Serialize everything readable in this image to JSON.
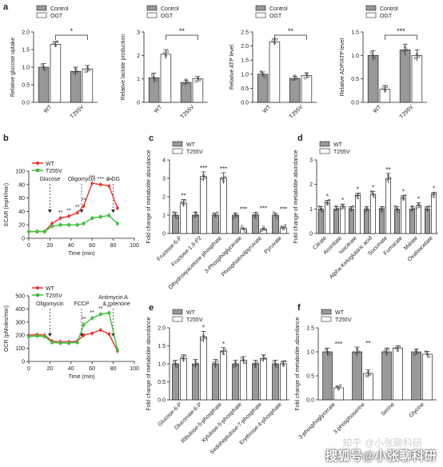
{
  "panel_labels": [
    "a",
    "b",
    "c",
    "d",
    "e",
    "f"
  ],
  "watermark": {
    "top": "知乎 @小张聊科研",
    "bottom": "搜狐号@小张聊科研"
  },
  "colors": {
    "control": "#999999",
    "ogt": "#ffffff",
    "wt_bar": "#999999",
    "t255v_bar": "#ffffff",
    "wt_line": "#e8312a",
    "t255v_line": "#3fbf3a",
    "axis": "#222222",
    "dots": "#555555"
  },
  "chart_data": [
    {
      "id": "a1",
      "type": "bar",
      "legend": [
        "Control",
        "OGT"
      ],
      "ylabel": "Relative glucose uptake",
      "categories": [
        "WT",
        "T255V"
      ],
      "ylim": [
        0,
        2.0
      ],
      "yticks": [
        0.0,
        0.5,
        1.0,
        1.5,
        2.0
      ],
      "series": [
        {
          "name": "Control",
          "values": [
            1.0,
            0.88
          ],
          "err": [
            0.1,
            0.12
          ]
        },
        {
          "name": "OGT",
          "values": [
            1.65,
            0.95
          ],
          "err": [
            0.08,
            0.1
          ]
        }
      ],
      "sig": "*"
    },
    {
      "id": "a2",
      "type": "bar",
      "legend": [
        "Control",
        "OGT"
      ],
      "ylabel": "Relative lactate production",
      "categories": [
        "WT",
        "T255V"
      ],
      "ylim": [
        0,
        3
      ],
      "yticks": [
        0,
        1,
        2,
        3
      ],
      "series": [
        {
          "name": "Control",
          "values": [
            1.05,
            0.85
          ],
          "err": [
            0.2,
            0.1
          ]
        },
        {
          "name": "OGT",
          "values": [
            2.05,
            1.0
          ],
          "err": [
            0.2,
            0.1
          ]
        }
      ],
      "sig": "**"
    },
    {
      "id": "a3",
      "type": "bar",
      "legend": [
        "Control",
        "OGT"
      ],
      "ylabel": "Relative ATP level",
      "categories": [
        "WT",
        "T255V"
      ],
      "ylim": [
        0,
        2.5
      ],
      "yticks": [
        0.0,
        0.5,
        1.0,
        1.5,
        2.0,
        2.5
      ],
      "series": [
        {
          "name": "Control",
          "values": [
            1.0,
            0.85
          ],
          "err": [
            0.08,
            0.08
          ]
        },
        {
          "name": "OGT",
          "values": [
            2.15,
            0.95
          ],
          "err": [
            0.12,
            0.1
          ]
        }
      ],
      "sig": "**"
    },
    {
      "id": "a4",
      "type": "bar",
      "legend": [
        "Control",
        "OGT"
      ],
      "ylabel": "Relative ADP/ATP level",
      "categories": [
        "WT",
        "T255V"
      ],
      "ylim": [
        0,
        1.5
      ],
      "yticks": [
        0.0,
        0.5,
        1.0,
        1.5
      ],
      "series": [
        {
          "name": "Control",
          "values": [
            1.0,
            1.12
          ],
          "err": [
            0.1,
            0.12
          ]
        },
        {
          "name": "OGT",
          "values": [
            0.28,
            1.0
          ],
          "err": [
            0.08,
            0.12
          ]
        }
      ],
      "sig": "***"
    },
    {
      "id": "b1",
      "type": "line",
      "legend": [
        "WT",
        "T255V"
      ],
      "ylabel": "ECAR (mpH/min)",
      "xlabel": "Time (min)",
      "xlim": [
        0,
        100
      ],
      "ylim": [
        0,
        100
      ],
      "xticks": [
        0,
        20,
        40,
        60,
        80,
        100
      ],
      "yticks": [
        0,
        20,
        40,
        60,
        80,
        100
      ],
      "x": [
        0,
        8,
        15,
        22,
        30,
        38,
        46,
        52,
        60,
        68,
        76,
        84
      ],
      "series": [
        {
          "name": "WT",
          "values": [
            10,
            10,
            10,
            22,
            30,
            33,
            38,
            48,
            82,
            80,
            78,
            45
          ]
        },
        {
          "name": "T255V",
          "values": [
            10,
            10,
            10,
            18,
            20,
            20,
            20,
            22,
            30,
            32,
            34,
            22
          ]
        }
      ],
      "events": [
        {
          "label": "Glucose",
          "x": 20
        },
        {
          "label": "Oligomycin",
          "x": 50
        },
        {
          "label": "2-DG",
          "x": 80
        }
      ],
      "marks": [
        "**",
        "**",
        "**",
        "**",
        "***",
        "***",
        "***"
      ]
    },
    {
      "id": "b2",
      "type": "line",
      "legend": [
        "WT",
        "T255V"
      ],
      "ylabel": "OCR (pMoles/min)",
      "xlabel": "Time (min)",
      "xlim": [
        0,
        100
      ],
      "ylim": [
        0,
        500
      ],
      "xticks": [
        0,
        20,
        40,
        60,
        80,
        100
      ],
      "yticks": [
        0,
        100,
        200,
        300,
        400,
        500
      ],
      "x": [
        0,
        8,
        15,
        22,
        30,
        38,
        46,
        52,
        60,
        68,
        76,
        84
      ],
      "series": [
        {
          "name": "WT",
          "values": [
            200,
            205,
            200,
            155,
            150,
            150,
            155,
            200,
            215,
            240,
            210,
            80
          ]
        },
        {
          "name": "T255V",
          "values": [
            190,
            195,
            190,
            145,
            140,
            140,
            145,
            280,
            330,
            360,
            370,
            90
          ]
        }
      ],
      "events": [
        {
          "label": "Oligomycin",
          "x": 20
        },
        {
          "label": "FCCP",
          "x": 50
        },
        {
          "label": "Antimycin A",
          "label2": "& rotenone",
          "x": 80
        }
      ],
      "marks": [
        "**",
        "**",
        "**",
        "**"
      ]
    },
    {
      "id": "c",
      "type": "bar",
      "legend": [
        "WT",
        "T255V"
      ],
      "ylabel": "Fold change of metabolite abundance",
      "ylim": [
        0,
        4
      ],
      "yticks": [
        0,
        1,
        2,
        3,
        4
      ],
      "categories": [
        "Fructose-6-P",
        "Fructose-1,6-P2",
        "Dihydroxyacetone phosphate",
        "3-Phosphoglycerate",
        "Phosphoenolpyruvate",
        "Pyruvate"
      ],
      "series": [
        {
          "name": "WT",
          "values": [
            1.0,
            1.0,
            1.0,
            1.0,
            1.0,
            1.0
          ],
          "err": [
            0.15,
            0.15,
            0.1,
            0.1,
            0.15,
            0.1
          ]
        },
        {
          "name": "T255V",
          "values": [
            1.65,
            3.1,
            3.0,
            0.25,
            0.22,
            0.3
          ],
          "err": [
            0.2,
            0.25,
            0.3,
            0.05,
            0.05,
            0.05
          ]
        }
      ],
      "sigs": [
        "**",
        "***",
        "***",
        "***",
        "***",
        "***"
      ]
    },
    {
      "id": "d",
      "type": "bar",
      "legend": [
        "WT",
        "T255V"
      ],
      "ylabel": "Fold change of metabolite abundance",
      "ylim": [
        0,
        3
      ],
      "yticks": [
        0,
        1,
        2,
        3
      ],
      "categories": [
        "Citrate",
        "Aconitate",
        "Isocitrate",
        "Alpha-Ketoglutaric acid",
        "Succinate",
        "Fumarate",
        "Malate",
        "Oxaloacetate"
      ],
      "series": [
        {
          "name": "WT",
          "values": [
            1.0,
            1.0,
            1.0,
            1.0,
            1.0,
            1.0,
            1.0,
            1.0
          ],
          "err": [
            0.1,
            0.1,
            0.1,
            0.1,
            0.1,
            0.1,
            0.1,
            0.1
          ]
        },
        {
          "name": "T255V",
          "values": [
            1.25,
            1.1,
            1.55,
            1.6,
            2.25,
            1.45,
            1.15,
            1.6
          ],
          "err": [
            0.1,
            0.1,
            0.1,
            0.12,
            0.2,
            0.1,
            0.1,
            0.08
          ]
        }
      ],
      "sigs": [
        "*",
        "*",
        "*",
        "*",
        "**",
        "*",
        "*",
        "*"
      ]
    },
    {
      "id": "e",
      "type": "bar",
      "legend": [
        "WT",
        "T255V"
      ],
      "ylabel": "Fold change of metabolite abundance",
      "ylim": [
        0,
        2.0
      ],
      "yticks": [
        0.0,
        0.5,
        1.0,
        1.5,
        2.0
      ],
      "categories": [
        "Glucose-6-P",
        "Gluconate-6-P",
        "Ribulose-5-phosphate",
        "Xylulose-5-phosphate",
        "Sedoheptulose-7-phosphate",
        "Erythrose-4-phosphate"
      ],
      "series": [
        {
          "name": "WT",
          "values": [
            1.0,
            1.0,
            1.0,
            1.0,
            1.0,
            1.0
          ],
          "err": [
            0.1,
            0.12,
            0.12,
            0.1,
            0.1,
            0.1
          ]
        },
        {
          "name": "T255V",
          "values": [
            1.15,
            1.75,
            1.35,
            1.1,
            1.15,
            1.0
          ],
          "err": [
            0.1,
            0.15,
            0.1,
            0.1,
            0.1,
            0.08
          ]
        }
      ],
      "sigs": [
        "",
        "*",
        "*",
        "",
        "",
        ""
      ]
    },
    {
      "id": "f",
      "type": "bar",
      "legend": [
        "WT",
        "T255V"
      ],
      "ylabel": "Fold change of metabolite abundance",
      "ylim": [
        0,
        1.5
      ],
      "yticks": [
        0.0,
        0.5,
        1.0,
        1.5
      ],
      "categories": [
        "3-phosphoglycerate",
        "3-phosphoserine",
        "Serine",
        "Glycine"
      ],
      "series": [
        {
          "name": "WT",
          "values": [
            1.0,
            1.0,
            1.0,
            1.0
          ],
          "err": [
            0.08,
            0.1,
            0.08,
            0.06
          ]
        },
        {
          "name": "T255V",
          "values": [
            0.25,
            0.55,
            1.08,
            0.95
          ],
          "err": [
            0.03,
            0.08,
            0.05,
            0.06
          ]
        }
      ],
      "sigs": [
        "***",
        "**",
        "",
        ""
      ]
    }
  ]
}
